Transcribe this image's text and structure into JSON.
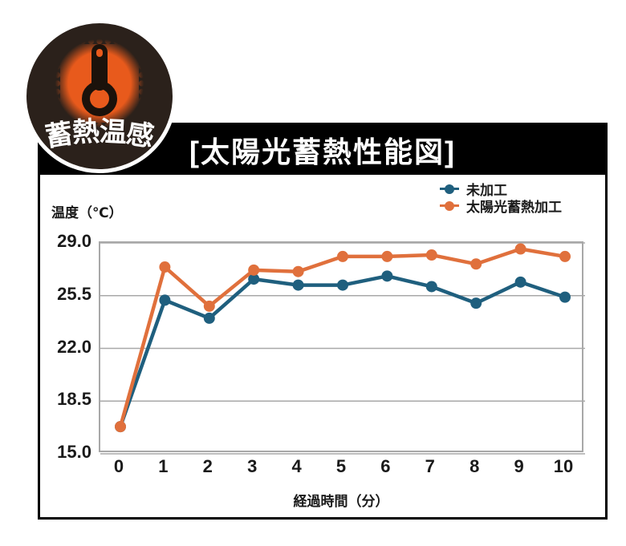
{
  "badge": {
    "label": "蓄熱温感"
  },
  "panel": {
    "title": "[太陽光蓄熱性能図]"
  },
  "colors": {
    "grid": "#A8A8A8",
    "text": "#1A1A1A",
    "panel_border": "#000000",
    "title_bg": "#000000",
    "title_fg": "#FFFFFF",
    "badge_bg": "#2B211B",
    "badge_ring": "#FFFFFF",
    "badge_orange": "#E85A1C",
    "thermometer": "#1B120B"
  },
  "chart_data": {
    "type": "line",
    "title": "太陽光蓄熱性能図",
    "xlabel": "経過時間（分）",
    "ylabel": "温度（℃）",
    "categories": [
      0,
      1,
      2,
      3,
      4,
      5,
      6,
      7,
      8,
      9,
      10
    ],
    "x_tick_labels": [
      "0",
      "1",
      "2",
      "3",
      "4",
      "5",
      "6",
      "7",
      "8",
      "9",
      "10"
    ],
    "y_ticks": [
      29.0,
      25.5,
      22.0,
      18.5,
      15.0
    ],
    "y_tick_labels": [
      "29.0",
      "25.5",
      "22.0",
      "18.5",
      "15.0"
    ],
    "ylim": [
      15.0,
      29.0
    ],
    "grid": true,
    "legend_position": "top-right",
    "series": [
      {
        "name": "未加工",
        "color": "#1F5F7E",
        "values": [
          16.8,
          25.2,
          24.0,
          26.6,
          26.2,
          26.2,
          26.8,
          26.1,
          25.0,
          26.4,
          25.4
        ]
      },
      {
        "name": "太陽光蓄熱加工",
        "color": "#E0703C",
        "values": [
          16.8,
          27.4,
          24.8,
          27.2,
          27.1,
          28.1,
          28.1,
          28.2,
          27.6,
          28.6,
          28.1
        ]
      }
    ]
  }
}
